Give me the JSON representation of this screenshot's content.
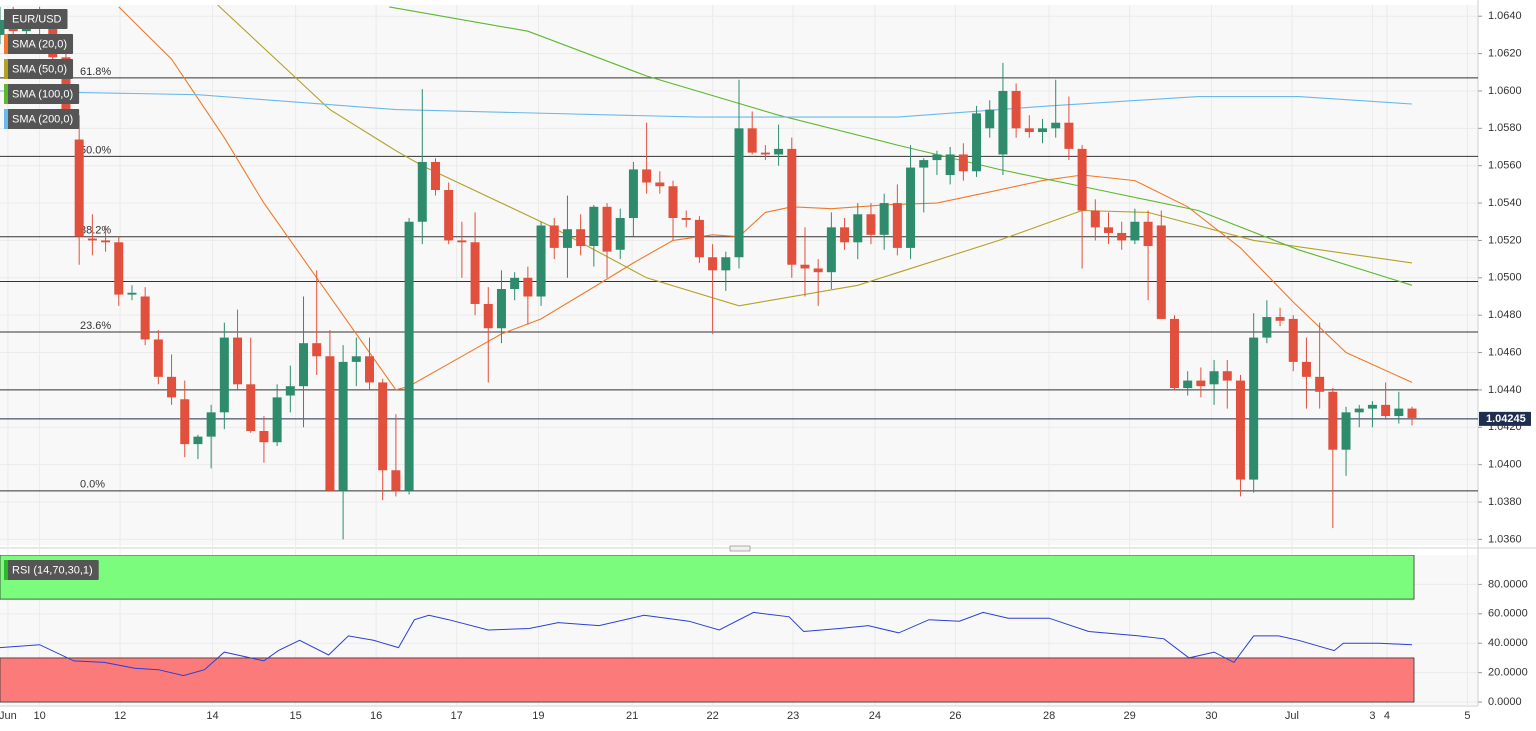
{
  "chart_data": [
    {
      "type": "candlestick",
      "name": "EUR/USD",
      "up_color": "#2e8c6d",
      "down_color": "#e0503c",
      "xlim": [
        0,
        112
      ],
      "ylim": [
        1.0357,
        1.0646
      ],
      "yticks": [
        {
          "value": 1.036,
          "label": "1.0360"
        },
        {
          "value": 1.038,
          "label": "1.0380"
        },
        {
          "value": 1.04,
          "label": "1.0400"
        },
        {
          "value": 1.042,
          "label": "1.0420"
        },
        {
          "value": 1.044,
          "label": "1.0440"
        },
        {
          "value": 1.046,
          "label": "1.0460"
        },
        {
          "value": 1.048,
          "label": "1.0480"
        },
        {
          "value": 1.05,
          "label": "1.0500"
        },
        {
          "value": 1.052,
          "label": "1.0520"
        },
        {
          "value": 1.054,
          "label": "1.0540"
        },
        {
          "value": 1.056,
          "label": "1.0560"
        },
        {
          "value": 1.058,
          "label": "1.0580"
        },
        {
          "value": 1.06,
          "label": "1.0600"
        },
        {
          "value": 1.062,
          "label": "1.0620"
        },
        {
          "value": 1.064,
          "label": "1.0640"
        }
      ],
      "xticks": [
        {
          "value": 0.6,
          "label": "Jun"
        },
        {
          "value": 3.0,
          "label": "10"
        },
        {
          "value": 9.1,
          "label": "12"
        },
        {
          "value": 16.1,
          "label": "14"
        },
        {
          "value": 22.4,
          "label": "15"
        },
        {
          "value": 28.5,
          "label": "16"
        },
        {
          "value": 34.6,
          "label": "17"
        },
        {
          "value": 40.8,
          "label": "19"
        },
        {
          "value": 47.9,
          "label": "21"
        },
        {
          "value": 54.0,
          "label": "22"
        },
        {
          "value": 60.1,
          "label": "23"
        },
        {
          "value": 66.3,
          "label": "24"
        },
        {
          "value": 72.4,
          "label": "26"
        },
        {
          "value": 79.5,
          "label": "28"
        },
        {
          "value": 85.6,
          "label": "29"
        },
        {
          "value": 91.8,
          "label": "30"
        },
        {
          "value": 97.9,
          "label": "Jul"
        },
        {
          "value": 104.0,
          "label": "3"
        },
        {
          "value": 105.1,
          "label": "4"
        },
        {
          "value": 111.2,
          "label": "5"
        }
      ],
      "levels": [
        {
          "label": "61.8%",
          "value": 1.0607
        },
        {
          "label": "50.0%",
          "value": 1.0565
        },
        {
          "label": "38.2%",
          "value": 1.0522
        },
        {
          "label": "23.6%",
          "value": 1.0471
        },
        {
          "label": "0.0%",
          "value": 1.0386
        }
      ],
      "lines": [
        1.0498,
        1.044
      ],
      "last_price": 1.04245,
      "x": [
        0,
        1,
        2,
        3,
        4,
        5,
        6,
        7,
        8,
        9,
        10,
        11,
        12,
        13,
        14,
        15,
        16,
        17,
        18,
        19,
        20,
        21,
        22,
        23,
        24,
        25,
        26,
        27,
        28,
        29,
        30,
        31,
        32,
        33,
        34,
        35,
        36,
        37,
        38,
        39,
        40,
        41,
        42,
        43,
        44,
        45,
        46,
        47,
        48,
        49,
        50,
        51,
        52,
        53,
        54,
        55,
        56,
        57,
        58,
        59,
        60,
        61,
        62,
        63,
        64,
        65,
        66,
        67,
        68,
        69,
        70,
        71,
        72,
        73,
        74,
        75,
        76,
        77,
        78,
        79,
        80,
        81,
        82,
        83,
        84,
        85,
        86,
        87,
        88,
        89,
        90,
        91,
        92,
        93,
        94,
        95,
        96,
        97,
        98,
        99,
        100,
        101,
        102,
        103,
        104,
        105,
        106,
        107
      ],
      "open": [
        1.063,
        1.0638,
        1.0632,
        1.064,
        1.0634,
        1.0618,
        1.0574,
        1.0521,
        1.052,
        1.0519,
        1.0491,
        1.049,
        1.0467,
        1.0447,
        1.0435,
        1.0411,
        1.0415,
        1.0428,
        1.0468,
        1.0443,
        1.0418,
        1.0412,
        1.0437,
        1.0442,
        1.0465,
        1.0458,
        1.0386,
        1.0455,
        1.0458,
        1.0444,
        1.0397,
        1.0386,
        1.053,
        1.0562,
        1.0547,
        1.052,
        1.0519,
        1.0486,
        1.0473,
        1.0494,
        1.05,
        1.049,
        1.0528,
        1.0516,
        1.0526,
        1.0517,
        1.0538,
        1.0515,
        1.0532,
        1.0558,
        1.0551,
        1.0549,
        1.0532,
        1.0531,
        1.0511,
        1.0504,
        1.0511,
        1.058,
        1.0567,
        1.0566,
        1.0569,
        1.0507,
        1.0505,
        1.0503,
        1.0527,
        1.0519,
        1.0534,
        1.0523,
        1.054,
        1.0516,
        1.0559,
        1.0563,
        1.0555,
        1.0566,
        1.0557,
        1.058,
        1.0566,
        1.06,
        1.058,
        1.0578,
        1.058,
        1.0583,
        1.0569,
        1.0536,
        1.0527,
        1.0524,
        1.052,
        1.053,
        1.0528,
        1.0478,
        1.0441,
        1.0445,
        1.0443,
        1.045,
        1.0445,
        1.0392,
        1.0468,
        1.0479,
        1.0478,
        1.0455,
        1.0447,
        1.0439,
        1.0408,
        1.0428,
        1.043,
        1.0432,
        1.0426,
        1.043
      ],
      "high": [
        1.0645,
        1.0645,
        1.0642,
        1.0645,
        1.064,
        1.0622,
        1.0587,
        1.0534,
        1.0528,
        1.0522,
        1.0496,
        1.0495,
        1.0472,
        1.0459,
        1.0445,
        1.0416,
        1.0432,
        1.0476,
        1.0483,
        1.0468,
        1.0426,
        1.0443,
        1.0453,
        1.049,
        1.0504,
        1.0472,
        1.0464,
        1.0468,
        1.0468,
        1.0446,
        1.0427,
        1.0532,
        1.0601,
        1.0564,
        1.0551,
        1.053,
        1.0535,
        1.0495,
        1.0504,
        1.0503,
        1.0506,
        1.053,
        1.0532,
        1.0544,
        1.0534,
        1.0539,
        1.054,
        1.0537,
        1.0562,
        1.0583,
        1.0557,
        1.0552,
        1.0536,
        1.0533,
        1.0518,
        1.0514,
        1.0606,
        1.0589,
        1.0571,
        1.0582,
        1.0575,
        1.0527,
        1.051,
        1.0535,
        1.0532,
        1.054,
        1.054,
        1.0545,
        1.055,
        1.0571,
        1.0564,
        1.0568,
        1.057,
        1.0572,
        1.0592,
        1.0595,
        1.0615,
        1.0604,
        1.0587,
        1.0585,
        1.0606,
        1.0597,
        1.0571,
        1.0542,
        1.0535,
        1.053,
        1.0537,
        1.0536,
        1.0536,
        1.048,
        1.045,
        1.0452,
        1.0456,
        1.0456,
        1.0448,
        1.0481,
        1.0488,
        1.0484,
        1.048,
        1.0468,
        1.0476,
        1.0441,
        1.0431,
        1.0432,
        1.0434,
        1.0444,
        1.0439,
        1.0431
      ],
      "low": [
        1.0625,
        1.0628,
        1.0626,
        1.063,
        1.0612,
        1.058,
        1.0507,
        1.0512,
        1.0514,
        1.0485,
        1.0488,
        1.0464,
        1.0443,
        1.0432,
        1.0404,
        1.0403,
        1.0398,
        1.0419,
        1.044,
        1.0417,
        1.0401,
        1.041,
        1.0428,
        1.042,
        1.0448,
        1.0386,
        1.036,
        1.0442,
        1.044,
        1.0381,
        1.0383,
        1.0384,
        1.0518,
        1.0544,
        1.0518,
        1.05,
        1.048,
        1.0444,
        1.0465,
        1.0488,
        1.0475,
        1.0485,
        1.051,
        1.05,
        1.0512,
        1.0506,
        1.05,
        1.051,
        1.0522,
        1.0545,
        1.0545,
        1.052,
        1.0527,
        1.0508,
        1.047,
        1.0493,
        1.0505,
        1.0566,
        1.0563,
        1.056,
        1.05,
        1.049,
        1.0485,
        1.0494,
        1.0515,
        1.051,
        1.0518,
        1.0515,
        1.0512,
        1.051,
        1.0535,
        1.0555,
        1.055,
        1.0552,
        1.0554,
        1.0575,
        1.0555,
        1.0575,
        1.0575,
        1.0572,
        1.0575,
        1.0563,
        1.0505,
        1.052,
        1.0518,
        1.0515,
        1.0518,
        1.0488,
        1.0478,
        1.044,
        1.0437,
        1.0436,
        1.0432,
        1.043,
        1.0383,
        1.0385,
        1.0465,
        1.0474,
        1.045,
        1.043,
        1.043,
        1.0366,
        1.0394,
        1.042,
        1.042,
        1.0424,
        1.0422,
        1.0421
      ],
      "close": [
        1.0638,
        1.0632,
        1.064,
        1.0634,
        1.0618,
        1.0585,
        1.0522,
        1.052,
        1.0519,
        1.0491,
        1.0492,
        1.0467,
        1.0447,
        1.0436,
        1.0411,
        1.0415,
        1.0428,
        1.0468,
        1.0443,
        1.0418,
        1.0412,
        1.0436,
        1.0442,
        1.0465,
        1.0458,
        1.0386,
        1.0455,
        1.0458,
        1.0444,
        1.0397,
        1.0386,
        1.053,
        1.0562,
        1.0547,
        1.052,
        1.0519,
        1.0486,
        1.0473,
        1.0494,
        1.05,
        1.049,
        1.0528,
        1.0516,
        1.0526,
        1.0517,
        1.0538,
        1.0514,
        1.0532,
        1.0558,
        1.0551,
        1.0549,
        1.0532,
        1.0531,
        1.0511,
        1.0504,
        1.0511,
        1.058,
        1.0567,
        1.0566,
        1.0569,
        1.0507,
        1.0505,
        1.0503,
        1.0527,
        1.0519,
        1.0534,
        1.0523,
        1.054,
        1.0516,
        1.0559,
        1.0563,
        1.0566,
        1.0566,
        1.0557,
        1.0588,
        1.059,
        1.06,
        1.058,
        1.0578,
        1.058,
        1.0583,
        1.0569,
        1.0536,
        1.0527,
        1.0524,
        1.052,
        1.053,
        1.0517,
        1.0478,
        1.0441,
        1.0445,
        1.0442,
        1.045,
        1.0445,
        1.0392,
        1.0468,
        1.0479,
        1.0477,
        1.0455,
        1.0447,
        1.0439,
        1.0408,
        1.0428,
        1.043,
        1.0432,
        1.0426,
        1.043,
        1.0425
      ],
      "series": [
        {
          "name": "SMA (20,0)",
          "color": "#f07a2a",
          "x": [
            9,
            13,
            17,
            20,
            24,
            27,
            30,
            31,
            35,
            38,
            41,
            45,
            48,
            51,
            54,
            56,
            58,
            60,
            63,
            67,
            71,
            75,
            79,
            82,
            86,
            90,
            94,
            98,
            102,
            107
          ],
          "values": [
            1.0645,
            1.0617,
            1.0575,
            1.054,
            1.05,
            1.047,
            1.044,
            1.0442,
            1.0458,
            1.047,
            1.0478,
            1.0495,
            1.0508,
            1.052,
            1.0523,
            1.0522,
            1.0535,
            1.0538,
            1.0537,
            1.0539,
            1.054,
            1.0546,
            1.0552,
            1.0555,
            1.0552,
            1.0538,
            1.0516,
            1.0487,
            1.046,
            1.0444
          ]
        },
        {
          "name": "SMA (50,0)",
          "color": "#b3a126",
          "x": [
            16.5,
            25,
            30,
            32,
            41.6,
            49,
            56,
            65,
            75.7,
            82,
            87,
            95,
            107
          ],
          "values": [
            1.0646,
            1.059,
            1.0568,
            1.056,
            1.0528,
            1.05,
            1.0485,
            1.0496,
            1.052,
            1.0536,
            1.0535,
            1.052,
            1.0508
          ]
        },
        {
          "name": "SMA (100,0)",
          "color": "#5cb82e",
          "x": [
            29.5,
            40,
            49,
            59,
            68,
            75.7,
            83.3,
            90.8,
            98.4,
            107
          ],
          "values": [
            1.0645,
            1.0632,
            1.0608,
            1.0587,
            1.0571,
            1.0558,
            1.0547,
            1.0536,
            1.0515,
            1.0496
          ]
        },
        {
          "name": "SMA (200,0)",
          "color": "#6ab9ea",
          "x": [
            0,
            15,
            30,
            53,
            68,
            79.5,
            90.8,
            98.4,
            107
          ],
          "values": [
            1.06,
            1.0598,
            1.059,
            1.0586,
            1.0586,
            1.0592,
            1.0597,
            1.0597,
            1.0593
          ]
        }
      ]
    },
    {
      "type": "line",
      "title": "RSI (14,70,30,1)",
      "color": "#2b3fd4",
      "ylim": [
        -2,
        100
      ],
      "yticks": [
        {
          "value": 0,
          "label": "0.0000"
        },
        {
          "value": 20,
          "label": "20.0000"
        },
        {
          "value": 40,
          "label": "40.0000"
        },
        {
          "value": 60,
          "label": "60.0000"
        },
        {
          "value": 80,
          "label": "80.0000"
        }
      ],
      "bands": [
        {
          "from": 70,
          "to": 100,
          "color": "#7cfc7c"
        },
        {
          "from": 0,
          "to": 30,
          "color": "#fb7b7b"
        }
      ],
      "x": [
        0,
        3,
        5.6,
        7.9,
        10.2,
        12,
        13.9,
        15.5,
        17,
        20,
        21.1,
        22.7,
        24.9,
        26.4,
        28.3,
        30.2,
        31.4,
        32.5,
        34,
        37,
        40.1,
        42.3,
        45.4,
        48.8,
        52.2,
        54.5,
        57.1,
        59.8,
        60.9,
        63.6,
        65.8,
        68.1,
        70.4,
        72.7,
        74.5,
        76.4,
        79.5,
        82.5,
        86.3,
        88.2,
        90.1,
        92,
        93.5,
        95,
        96.9,
        98.4,
        101.1,
        101.8,
        104.5,
        107
      ],
      "values": [
        37,
        39,
        28,
        27,
        23,
        22,
        18,
        22,
        34,
        28,
        35,
        42,
        32,
        45,
        42,
        37,
        56,
        59,
        56,
        49,
        50,
        54,
        52,
        59,
        55,
        49,
        61,
        58,
        48,
        50,
        52,
        47,
        56,
        55,
        61,
        57,
        57,
        48,
        45,
        43,
        30,
        34,
        27,
        45,
        45,
        42,
        35,
        40,
        40,
        39
      ]
    }
  ]
}
